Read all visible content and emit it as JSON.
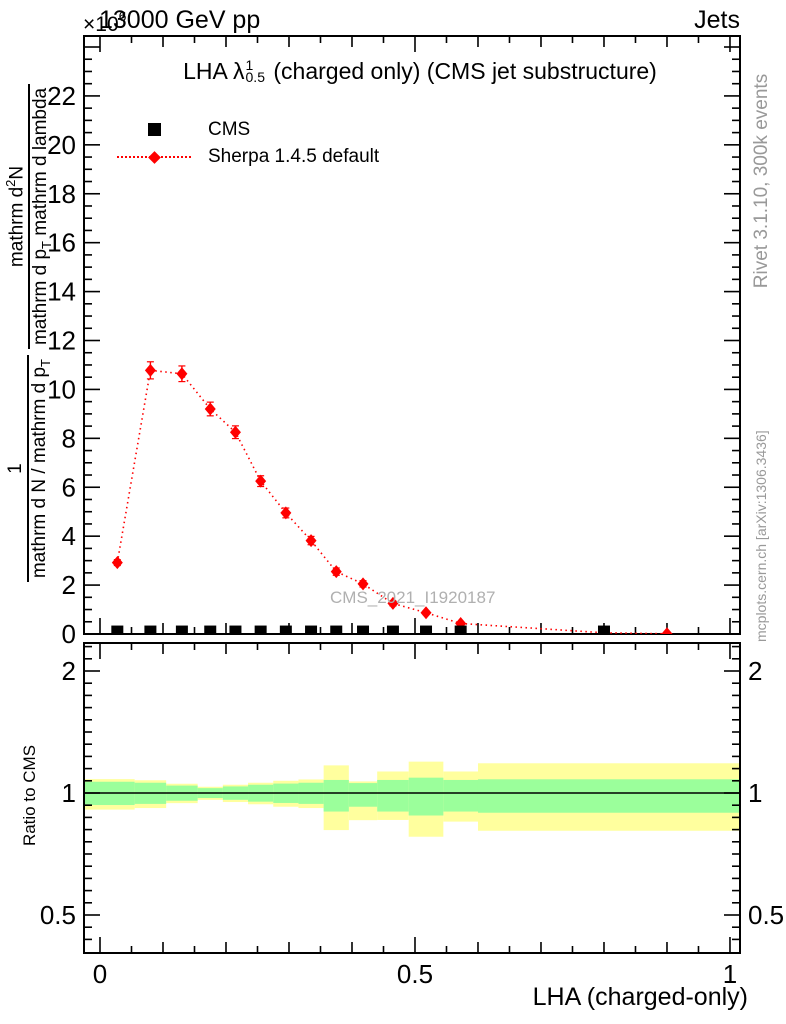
{
  "header": {
    "beam_energy": "13000 GeV pp",
    "analysis_group": "Jets",
    "exponent_base": "×10",
    "exponent_power": "6"
  },
  "plot_title": {
    "pre": "LHA ",
    "lambda": "λ",
    "sup": "1",
    "sub": "0.5",
    "post": " (charged only) (CMS jet substructure)"
  },
  "legend": [
    {
      "label": "CMS",
      "marker": "black-square"
    },
    {
      "label": "Sherpa 1.4.5 default",
      "marker": "red-diamond-dotted"
    }
  ],
  "watermark": "CMS_2021_I1920187",
  "side_notes": {
    "right_top": "Rivet 3.1.10,  300k events",
    "right_bottom": "mcplots.cern.ch [arXiv:1306.3436]"
  },
  "axis_labels": {
    "x_title": "LHA (charged-only)",
    "ratio_y_title": "Ratio to CMS",
    "y_frac1_num": "1",
    "y_frac1_den": "mathrm d N / mathrm d p",
    "y_frac1_den_sub": "T",
    "y_frac2_num_pre": "mathrm d",
    "y_frac2_num_sup": "2",
    "y_frac2_num_post": "N",
    "y_frac2_den_a": "mathrm d p",
    "y_frac2_den_a_sub": "T",
    "y_frac2_den_b": " mathrm d lambda"
  },
  "chart_data": {
    "type": "line",
    "title": "LHA lambda^1_0.5 (charged only) (CMS jet substructure)",
    "xlabel": "LHA (charged-only)",
    "ylabel": "1/(mathrm dN/mathrm dp_T) mathrm d^2N/(mathrm dp_T mathrm d lambda)",
    "y_unit_exponent": 6,
    "x_axis": {
      "lim": [
        -0.0254,
        1.0159
      ],
      "major_ticks": [
        0,
        0.5,
        1
      ],
      "major_labels": [
        "0",
        "0.5",
        "1"
      ],
      "mid_step": 0.1,
      "minor_step": 0.05
    },
    "y_axis": {
      "lim": [
        0,
        24.45
      ],
      "major_tick_values": [
        0,
        2,
        4,
        6,
        8,
        10,
        12,
        14,
        16,
        18,
        20,
        22
      ],
      "major_tick_labels": [
        "0",
        "2",
        "4",
        "6",
        "8",
        "10",
        "12",
        "14",
        "16",
        "18",
        "20",
        "22"
      ],
      "minor_step": 0.5,
      "major_step": 2
    },
    "series": [
      {
        "name": "CMS",
        "marker": "square",
        "color": "#000000",
        "x": [
          0.0275,
          0.08,
          0.13,
          0.175,
          0.215,
          0.255,
          0.295,
          0.335,
          0.375,
          0.4175,
          0.465,
          0.5175,
          0.5725,
          0.8
        ],
        "y": [
          0.1,
          0.1,
          0.1,
          0.1,
          0.1,
          0.1,
          0.1,
          0.1,
          0.1,
          0.1,
          0.1,
          0.1,
          0.1,
          0.1
        ]
      },
      {
        "name": "Sherpa 1.4.5 default",
        "marker": "diamond",
        "color": "#ff0000",
        "line": "dotted",
        "x": [
          0.0275,
          0.08,
          0.13,
          0.175,
          0.215,
          0.255,
          0.295,
          0.335,
          0.375,
          0.4175,
          0.465,
          0.5175,
          0.5725,
          0.8,
          0.9
        ],
        "y": [
          2.92,
          10.78,
          10.64,
          9.2,
          8.25,
          6.25,
          4.95,
          3.82,
          2.55,
          2.05,
          1.25,
          0.87,
          0.43,
          0.05,
          0.01
        ],
        "yerr": [
          0.12,
          0.35,
          0.32,
          0.28,
          0.26,
          0.22,
          0.2,
          0.17,
          0.15,
          0.13,
          0.1,
          0.08,
          0.06,
          0.02,
          0.01
        ]
      }
    ],
    "ratio_panel": {
      "ylabel": "Ratio to CMS",
      "scale": "log",
      "lim": [
        0.403,
        2.345
      ],
      "ticks": [
        {
          "value": 0.5,
          "label": "0.5"
        },
        {
          "value": 1,
          "label": "1"
        },
        {
          "value": 2,
          "label": "2"
        }
      ],
      "bin_edges": [
        0,
        0.055,
        0.105,
        0.155,
        0.195,
        0.235,
        0.275,
        0.315,
        0.355,
        0.395,
        0.44,
        0.49,
        0.545,
        0.6,
        1.0
      ],
      "green_band": [
        [
          0.934,
          1.066
        ],
        [
          0.94,
          1.06
        ],
        [
          0.957,
          1.043
        ],
        [
          0.972,
          1.028
        ],
        [
          0.962,
          1.038
        ],
        [
          0.952,
          1.048
        ],
        [
          0.945,
          1.055
        ],
        [
          0.94,
          1.06
        ],
        [
          0.9,
          1.077
        ],
        [
          0.925,
          1.058
        ],
        [
          0.9,
          1.077
        ],
        [
          0.88,
          1.091
        ],
        [
          0.9,
          1.077
        ],
        [
          0.894,
          1.081
        ]
      ],
      "yellow_band": [
        [
          0.91,
          1.082
        ],
        [
          0.918,
          1.075
        ],
        [
          0.944,
          1.054
        ],
        [
          0.962,
          1.036
        ],
        [
          0.95,
          1.048
        ],
        [
          0.938,
          1.06
        ],
        [
          0.925,
          1.072
        ],
        [
          0.918,
          1.08
        ],
        [
          0.81,
          1.17
        ],
        [
          0.857,
          1.068
        ],
        [
          0.858,
          1.13
        ],
        [
          0.78,
          1.195
        ],
        [
          0.85,
          1.13
        ],
        [
          0.807,
          1.184
        ]
      ],
      "colors": {
        "green": "#9bff9b",
        "yellow": "#ffff9e"
      }
    }
  }
}
